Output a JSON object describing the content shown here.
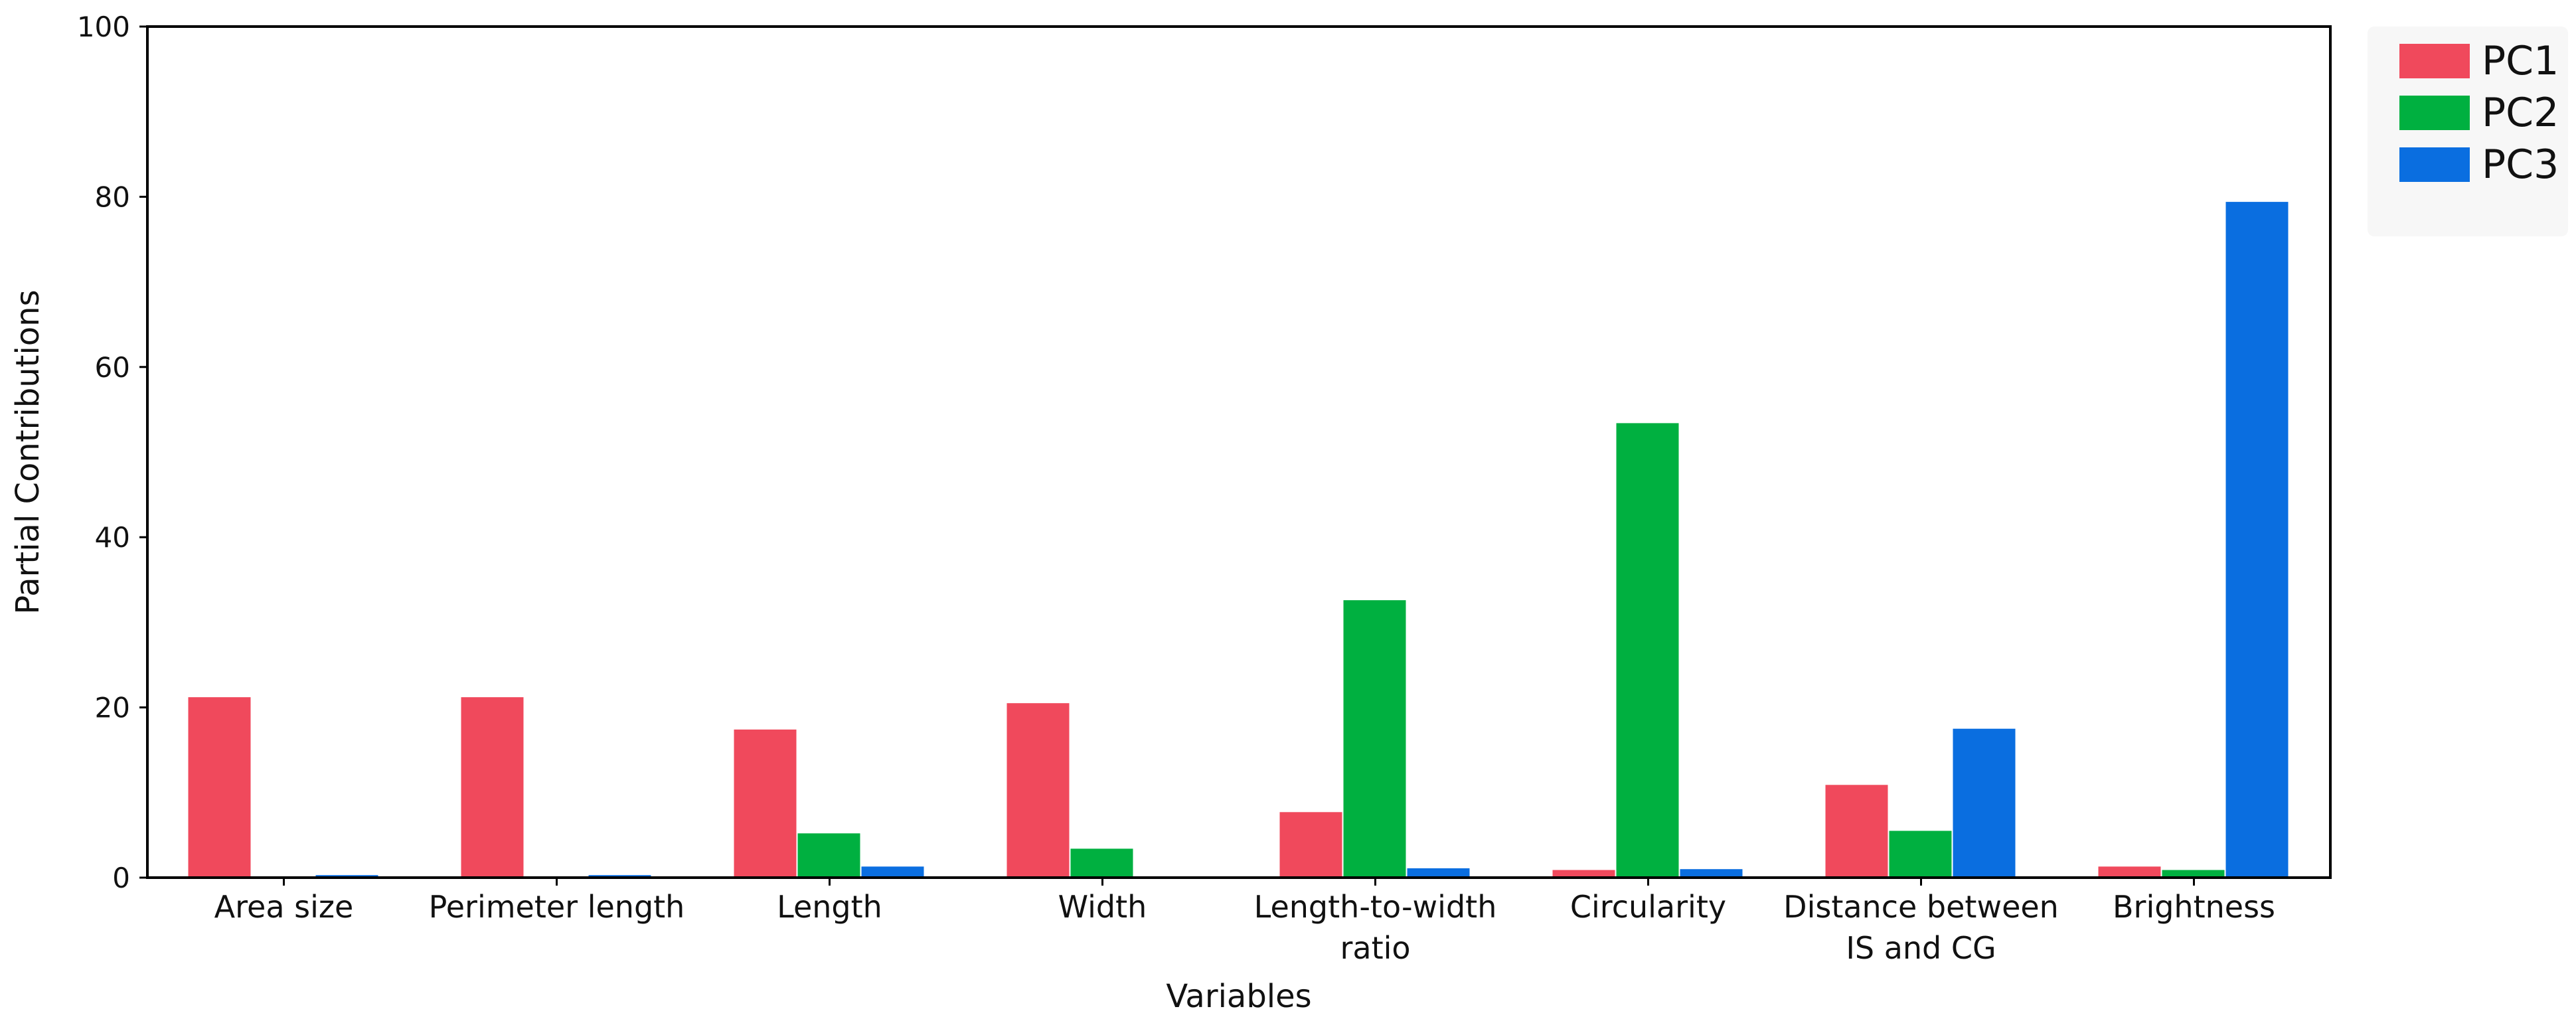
{
  "chart_data": {
    "type": "bar",
    "title": "",
    "xlabel": "Variables",
    "ylabel": "Partial Contributions",
    "ylim": [
      0,
      100
    ],
    "yticks": [
      0,
      20,
      40,
      60,
      80,
      100
    ],
    "categories": [
      [
        "Area size"
      ],
      [
        "Perimeter length"
      ],
      [
        "Length"
      ],
      [
        "Width"
      ],
      [
        "Length-to-width",
        "ratio"
      ],
      [
        "Circularity"
      ],
      [
        "Distance between",
        "IS and CG"
      ],
      [
        "Brightness"
      ]
    ],
    "series": [
      {
        "name": "PC1",
        "color": "#f0495c",
        "values": [
          21.2,
          21.2,
          17.4,
          20.5,
          7.7,
          0.9,
          10.9,
          1.3
        ]
      },
      {
        "name": "PC2",
        "color": "#00b040",
        "values": [
          0.0,
          0.0,
          5.2,
          3.4,
          32.6,
          53.4,
          5.5,
          0.9
        ]
      },
      {
        "name": "PC3",
        "color": "#0a6ee0",
        "values": [
          0.3,
          0.3,
          1.3,
          0.0,
          1.1,
          1.0,
          17.5,
          79.4
        ]
      }
    ],
    "grid": false,
    "legend_position": "top-right (outside plot)"
  }
}
